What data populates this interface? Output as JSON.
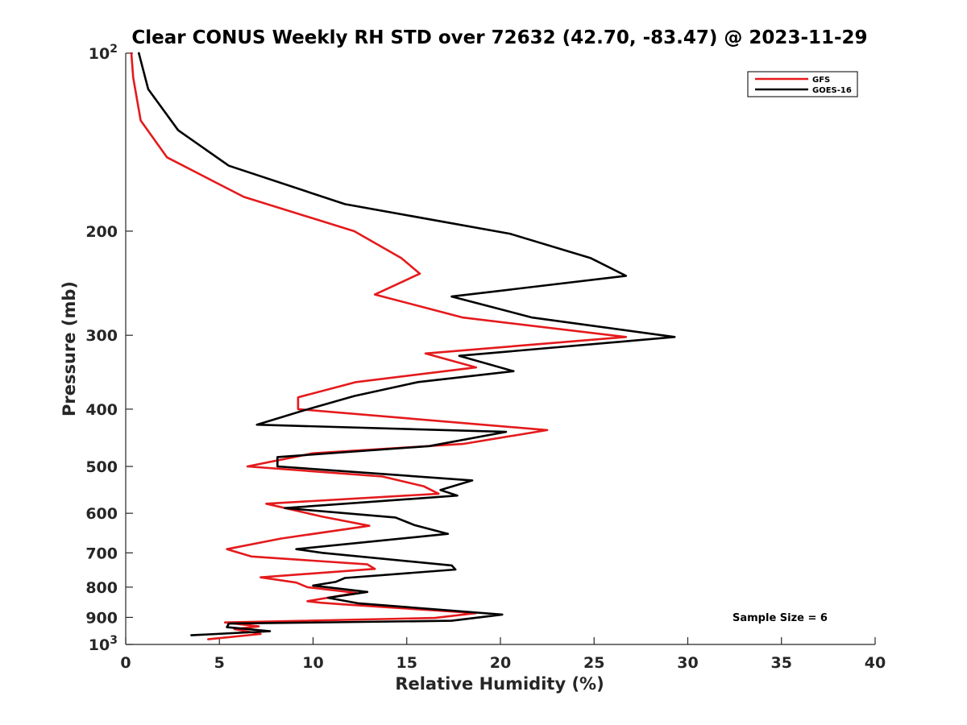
{
  "chart_data": {
    "type": "line",
    "title": "Clear CONUS Weekly RH STD over 72632 (42.70, -83.47) @ 2023-11-29",
    "xlabel": "Relative Humidity (%)",
    "ylabel": "Pressure (mb)",
    "xlim": [
      0,
      40
    ],
    "ylim": [
      100,
      1000
    ],
    "y_scale": "log",
    "y_reversed": true,
    "x_ticks": [
      0,
      5,
      10,
      15,
      20,
      25,
      30,
      35,
      40
    ],
    "y_ticks": [
      {
        "value": 100,
        "label": "10",
        "sup": "2"
      },
      {
        "value": 200,
        "label": "200",
        "sup": ""
      },
      {
        "value": 300,
        "label": "300",
        "sup": ""
      },
      {
        "value": 400,
        "label": "400",
        "sup": ""
      },
      {
        "value": 500,
        "label": "500",
        "sup": ""
      },
      {
        "value": 600,
        "label": "600",
        "sup": ""
      },
      {
        "value": 700,
        "label": "700",
        "sup": ""
      },
      {
        "value": 800,
        "label": "800",
        "sup": ""
      },
      {
        "value": 900,
        "label": "900",
        "sup": ""
      },
      {
        "value": 1000,
        "label": "10",
        "sup": "3"
      }
    ],
    "grid": false,
    "legend_position": "top-right",
    "annotation": "Sample Size = 6",
    "series": [
      {
        "name": "GFS",
        "color": "#e41a1c",
        "points": [
          [
            0.3,
            100
          ],
          [
            0.4,
            110
          ],
          [
            0.8,
            130
          ],
          [
            2.2,
            150
          ],
          [
            6.3,
            175
          ],
          [
            12.2,
            200
          ],
          [
            14.7,
            222
          ],
          [
            15.7,
            236
          ],
          [
            13.3,
            256
          ],
          [
            18.0,
            280
          ],
          [
            26.7,
            302
          ],
          [
            16.0,
            322
          ],
          [
            18.7,
            340
          ],
          [
            12.3,
            360
          ],
          [
            9.2,
            382
          ],
          [
            9.2,
            400
          ],
          [
            22.5,
            434
          ],
          [
            18.0,
            458
          ],
          [
            10.0,
            475
          ],
          [
            6.5,
            500
          ],
          [
            13.7,
            520
          ],
          [
            15.9,
            540
          ],
          [
            16.7,
            556
          ],
          [
            7.5,
            578
          ],
          [
            10.5,
            608
          ],
          [
            13.0,
            630
          ],
          [
            8.3,
            662
          ],
          [
            5.4,
            690
          ],
          [
            6.7,
            710
          ],
          [
            12.9,
            732
          ],
          [
            13.3,
            745
          ],
          [
            7.2,
            770
          ],
          [
            9.1,
            786
          ],
          [
            9.7,
            800
          ],
          [
            12.3,
            818
          ],
          [
            9.7,
            845
          ],
          [
            10.4,
            850
          ],
          [
            11.5,
            855
          ],
          [
            18.7,
            885
          ],
          [
            16.5,
            902
          ],
          [
            5.3,
            918
          ],
          [
            7.1,
            932
          ],
          [
            5.8,
            942
          ],
          [
            7.2,
            960
          ],
          [
            4.4,
            980
          ]
        ]
      },
      {
        "name": "GOES-16",
        "color": "#000000",
        "points": [
          [
            0.7,
            100
          ],
          [
            1.2,
            115
          ],
          [
            2.8,
            135
          ],
          [
            5.5,
            155
          ],
          [
            11.7,
            180
          ],
          [
            20.5,
            202
          ],
          [
            24.8,
            222
          ],
          [
            26.7,
            238
          ],
          [
            17.4,
            258
          ],
          [
            21.7,
            280
          ],
          [
            29.3,
            302
          ],
          [
            17.8,
            325
          ],
          [
            20.7,
            345
          ],
          [
            15.6,
            360
          ],
          [
            12.2,
            380
          ],
          [
            9.5,
            402
          ],
          [
            7.0,
            425
          ],
          [
            20.3,
            437
          ],
          [
            16.2,
            462
          ],
          [
            8.1,
            482
          ],
          [
            8.1,
            500
          ],
          [
            18.5,
            528
          ],
          [
            16.8,
            548
          ],
          [
            17.7,
            560
          ],
          [
            8.5,
            588
          ],
          [
            14.4,
            610
          ],
          [
            15.4,
            628
          ],
          [
            17.2,
            650
          ],
          [
            9.1,
            690
          ],
          [
            10.5,
            700
          ],
          [
            17.4,
            735
          ],
          [
            17.6,
            747
          ],
          [
            11.7,
            772
          ],
          [
            11.2,
            784
          ],
          [
            10.0,
            795
          ],
          [
            12.9,
            815
          ],
          [
            10.8,
            834
          ],
          [
            12.4,
            852
          ],
          [
            20.1,
            890
          ],
          [
            17.4,
            912
          ],
          [
            5.5,
            922
          ],
          [
            5.4,
            935
          ],
          [
            7.7,
            950
          ],
          [
            3.5,
            965
          ]
        ]
      }
    ]
  }
}
